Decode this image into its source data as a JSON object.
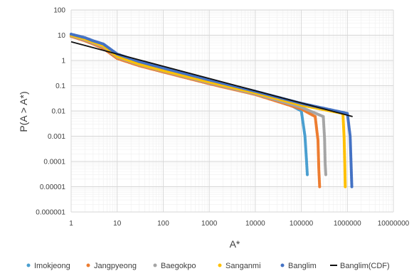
{
  "chart_data": {
    "type": "scatter",
    "title": "",
    "xlabel": "A*",
    "ylabel": "P(A > A*)",
    "x_scale": "log",
    "y_scale": "log",
    "xlim": [
      1,
      10000000
    ],
    "ylim": [
      1e-06,
      100
    ],
    "x_ticks": [
      "1",
      "10",
      "100",
      "1000",
      "10000",
      "100000",
      "1000000",
      "10000000"
    ],
    "y_ticks": [
      "100",
      "10",
      "1",
      "0.1",
      "0.01",
      "0.001",
      "0.0001",
      "0.00001",
      "0.000001"
    ],
    "grid": true,
    "legend_position": "bottom",
    "series": [
      {
        "name": "Imokjeong",
        "color": "#4a9fd0",
        "kind": "points",
        "points": [
          [
            1,
            10
          ],
          [
            2,
            7
          ],
          [
            3,
            5.5
          ],
          [
            5,
            4
          ],
          [
            10,
            1.5
          ],
          [
            30,
            0.75
          ],
          [
            100,
            0.42
          ],
          [
            1000,
            0.14
          ],
          [
            10000,
            0.05
          ],
          [
            50000,
            0.02
          ],
          [
            100000,
            0.01
          ],
          [
            120000,
            0.001
          ],
          [
            130000,
            0.0001
          ],
          [
            135000,
            3e-05
          ]
        ]
      },
      {
        "name": "Jangpyeong",
        "color": "#ed7d31",
        "kind": "points",
        "points": [
          [
            1,
            9
          ],
          [
            2,
            6
          ],
          [
            3,
            4.5
          ],
          [
            5,
            3
          ],
          [
            10,
            1.2
          ],
          [
            30,
            0.62
          ],
          [
            100,
            0.35
          ],
          [
            1000,
            0.12
          ],
          [
            10000,
            0.045
          ],
          [
            100000,
            0.012
          ],
          [
            200000,
            0.006
          ],
          [
            230000,
            0.0007
          ],
          [
            240000,
            5e-05
          ],
          [
            250000,
            1e-05
          ]
        ]
      },
      {
        "name": "Baegokpo",
        "color": "#a5a5a5",
        "kind": "points",
        "points": [
          [
            1,
            9.5
          ],
          [
            2,
            6.5
          ],
          [
            5,
            3.5
          ],
          [
            10,
            1.35
          ],
          [
            30,
            0.68
          ],
          [
            100,
            0.38
          ],
          [
            1000,
            0.13
          ],
          [
            10000,
            0.048
          ],
          [
            100000,
            0.014
          ],
          [
            300000,
            0.006
          ],
          [
            320000,
            0.0008
          ],
          [
            330000,
            8e-05
          ],
          [
            340000,
            3e-05
          ]
        ]
      },
      {
        "name": "Sanganmi",
        "color": "#ffc000",
        "kind": "points",
        "points": [
          [
            1,
            10
          ],
          [
            2,
            7
          ],
          [
            5,
            3.8
          ],
          [
            10,
            1.45
          ],
          [
            30,
            0.72
          ],
          [
            100,
            0.4
          ],
          [
            1000,
            0.14
          ],
          [
            10000,
            0.052
          ],
          [
            100000,
            0.017
          ],
          [
            800000,
            0.008
          ],
          [
            850000,
            0.0009
          ],
          [
            880000,
            8e-05
          ],
          [
            900000,
            1e-05
          ]
        ]
      },
      {
        "name": "Banglim",
        "color": "#4472c4",
        "kind": "points",
        "points": [
          [
            1,
            11
          ],
          [
            2,
            8
          ],
          [
            3,
            6
          ],
          [
            5,
            4.5
          ],
          [
            10,
            1.8
          ],
          [
            30,
            0.9
          ],
          [
            100,
            0.5
          ],
          [
            1000,
            0.17
          ],
          [
            10000,
            0.06
          ],
          [
            100000,
            0.02
          ],
          [
            1000000,
            0.008
          ],
          [
            1150000,
            0.001
          ],
          [
            1200000,
            0.0001
          ],
          [
            1250000,
            1e-05
          ]
        ]
      },
      {
        "name": "Banglim(CDF)",
        "color": "#111111",
        "kind": "line",
        "points": [
          [
            1,
            5.5
          ],
          [
            1300000,
            0.006
          ]
        ]
      }
    ]
  }
}
